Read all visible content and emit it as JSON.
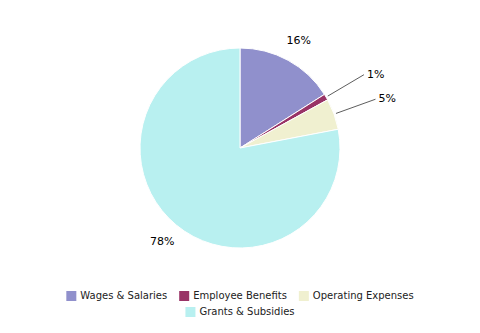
{
  "chart_data": {
    "type": "pie",
    "categories": [
      "Wages & Salaries",
      "Employee Benefits",
      "Operating Expenses",
      "Grants & Subsidies"
    ],
    "values": [
      16,
      1,
      5,
      78
    ],
    "value_labels": [
      "16%",
      "1%",
      "5%",
      "78%"
    ],
    "colors": [
      "#9090cc",
      "#993366",
      "#f0f0d0",
      "#b8f0f0"
    ],
    "data_labels": true,
    "legend": "bottom"
  }
}
